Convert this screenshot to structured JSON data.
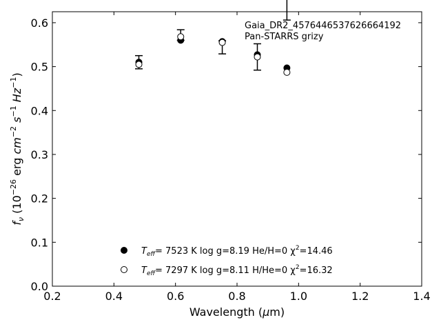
{
  "chart_data": {
    "type": "scatter",
    "xlabel": "Wavelength (μm)",
    "ylabel": "f_ν (10^-26 erg cm^-2 s^-1 Hz^-1)",
    "xlim": [
      0.2,
      1.4
    ],
    "ylim": [
      0.0,
      0.625
    ],
    "xticks": [
      "0.2",
      "0.4",
      "0.6",
      "0.8",
      "1.0",
      "1.2",
      "1.4"
    ],
    "yticks": [
      "0.0",
      "0.1",
      "0.2",
      "0.3",
      "0.4",
      "0.5",
      "0.6"
    ],
    "annotation": [
      "Gaia_DR2_4576446537626664192",
      "Pan-STARRS grizy"
    ],
    "observed": {
      "x": [
        0.481,
        0.617,
        0.752,
        0.866,
        0.962
      ],
      "y": [
        0.51,
        0.572,
        0.544,
        0.522,
        0.646
      ],
      "yerr": [
        0.015,
        0.012,
        0.015,
        0.03,
        0.04
      ]
    },
    "series": [
      {
        "marker": "filled-circle",
        "label_parts": [
          "T",
          "eff",
          "=  7523 K  log g=8.19  He/H=0  χ",
          "2",
          "=14.46"
        ],
        "x": [
          0.481,
          0.617,
          0.752,
          0.866,
          0.962
        ],
        "y": [
          0.51,
          0.56,
          0.557,
          0.527,
          0.497
        ]
      },
      {
        "marker": "open-circle",
        "label_parts": [
          "T",
          "eff",
          "=  7297 K  log g=8.11  H/He=0  χ",
          "2",
          "=16.32"
        ],
        "x": [
          0.481,
          0.617,
          0.752,
          0.866,
          0.962
        ],
        "y": [
          0.505,
          0.568,
          0.555,
          0.522,
          0.487
        ]
      }
    ],
    "grid": false,
    "legend_position": "lower-center"
  }
}
